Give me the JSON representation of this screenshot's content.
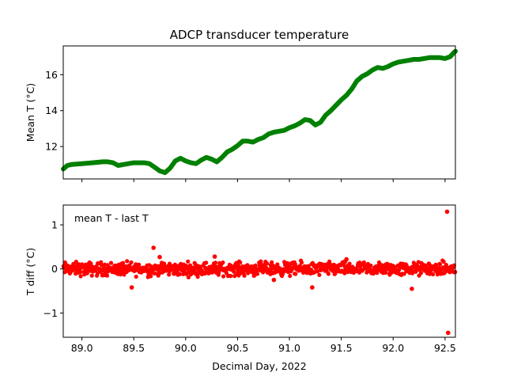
{
  "chart_data": [
    {
      "type": "line",
      "title": "ADCP transducer temperature",
      "xlabel": "",
      "ylabel": "Mean T (°C)",
      "xlim": [
        88.82,
        92.6
      ],
      "ylim": [
        10.2,
        17.6
      ],
      "xticks": [
        89.0,
        89.5,
        90.0,
        90.5,
        91.0,
        91.5,
        92.0,
        92.5
      ],
      "xtick_labels_visible": false,
      "yticks": [
        12,
        14,
        16
      ],
      "ytick_labels": [
        "12",
        "14",
        "16"
      ],
      "grid": false,
      "color": "#008000",
      "series": [
        {
          "x": [
            88.82,
            88.86,
            88.9,
            89.0,
            89.1,
            89.2,
            89.25,
            89.3,
            89.35,
            89.4,
            89.5,
            89.6,
            89.65,
            89.7,
            89.75,
            89.8,
            89.85,
            89.9,
            89.95,
            90.0,
            90.05,
            90.1,
            90.15,
            90.2,
            90.25,
            90.3,
            90.35,
            90.4,
            90.45,
            90.5,
            90.55,
            90.6,
            90.65,
            90.7,
            90.75,
            90.8,
            90.85,
            90.9,
            90.95,
            91.0,
            91.05,
            91.1,
            91.15,
            91.2,
            91.25,
            91.3,
            91.35,
            91.4,
            91.45,
            91.5,
            91.55,
            91.6,
            91.65,
            91.7,
            91.75,
            91.8,
            91.85,
            91.9,
            91.95,
            92.0,
            92.05,
            92.1,
            92.15,
            92.2,
            92.25,
            92.3,
            92.35,
            92.4,
            92.45,
            92.5,
            92.55,
            92.58,
            92.6
          ],
          "values": [
            10.75,
            10.95,
            11.0,
            11.05,
            11.1,
            11.15,
            11.15,
            11.1,
            10.95,
            11.0,
            11.1,
            11.1,
            11.05,
            10.85,
            10.65,
            10.55,
            10.8,
            11.2,
            11.35,
            11.2,
            11.1,
            11.05,
            11.25,
            11.4,
            11.3,
            11.15,
            11.4,
            11.7,
            11.85,
            12.05,
            12.3,
            12.3,
            12.25,
            12.4,
            12.5,
            12.7,
            12.8,
            12.85,
            12.9,
            13.05,
            13.15,
            13.3,
            13.5,
            13.45,
            13.2,
            13.35,
            13.75,
            14.0,
            14.3,
            14.6,
            14.85,
            15.2,
            15.65,
            15.9,
            16.05,
            16.25,
            16.4,
            16.35,
            16.45,
            16.6,
            16.7,
            16.75,
            16.8,
            16.85,
            16.85,
            16.9,
            16.95,
            16.95,
            16.95,
            16.9,
            17.0,
            17.2,
            17.3
          ]
        }
      ]
    },
    {
      "type": "scatter",
      "title": "",
      "xlabel": "Decimal Day, 2022",
      "ylabel": "T diff (°C)",
      "annotation": "mean T - last T",
      "xlim": [
        88.82,
        92.6
      ],
      "ylim": [
        -1.55,
        1.45
      ],
      "xticks": [
        89.0,
        89.5,
        90.0,
        90.5,
        91.0,
        91.5,
        92.0,
        92.5
      ],
      "xtick_labels": [
        "89.0",
        "89.5",
        "90.0",
        "90.5",
        "91.0",
        "91.5",
        "92.0",
        "92.5"
      ],
      "yticks": [
        -1,
        0,
        1
      ],
      "ytick_labels": [
        "−1",
        "0",
        "1"
      ],
      "grid": false,
      "color": "#ff0000",
      "noise_band": {
        "xmin": 88.82,
        "xmax": 92.6,
        "ymin": -0.22,
        "ymax": 0.22,
        "count": 900
      },
      "outliers": {
        "x": [
          89.48,
          89.69,
          89.75,
          90.28,
          91.22,
          92.18,
          92.52,
          92.53,
          91.55,
          90.85
        ],
        "y": [
          -0.42,
          0.48,
          0.27,
          0.28,
          -0.42,
          -0.45,
          1.3,
          -1.45,
          0.22,
          -0.25
        ]
      }
    }
  ]
}
